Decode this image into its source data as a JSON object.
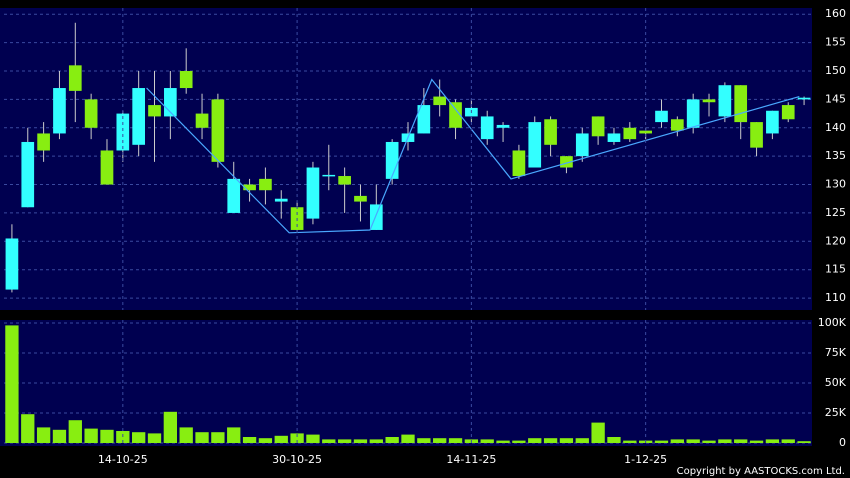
{
  "chart_data": [
    {
      "type": "candlestick",
      "open": [
        111.5,
        126,
        139,
        139,
        151,
        145,
        136,
        136,
        137,
        144,
        142,
        150,
        142.5,
        145,
        125,
        130,
        131,
        127,
        126,
        124,
        131.5,
        131.5,
        128,
        122,
        131,
        137.5,
        139,
        145.5,
        144.5,
        142,
        138,
        140,
        136,
        133,
        141.5,
        135,
        135,
        142,
        137.5,
        140,
        139.5,
        141,
        141.5,
        140,
        145,
        142,
        147.5,
        141,
        139,
        144,
        145
      ],
      "high": [
        123,
        140,
        141,
        150,
        158.5,
        146,
        138,
        143,
        150,
        150,
        150,
        154,
        146,
        146,
        134,
        131,
        133,
        129,
        127,
        134,
        137,
        133,
        130,
        130,
        138,
        141,
        147,
        148.5,
        145,
        145,
        143,
        141,
        137,
        142,
        142,
        135,
        140,
        142,
        140,
        141,
        140,
        145,
        142,
        146,
        146,
        148,
        147.5,
        141,
        143,
        144.5,
        145.5
      ],
      "low": [
        111,
        126,
        134,
        138,
        141,
        138,
        130,
        134,
        135,
        134,
        138,
        146,
        138,
        133,
        125,
        127,
        126.5,
        124,
        121.5,
        123,
        129,
        125,
        123.5,
        122,
        130,
        136,
        139,
        142,
        138,
        141,
        137,
        137.5,
        131,
        133,
        135,
        132,
        134,
        137,
        137,
        137.5,
        138,
        140,
        138.5,
        139,
        142,
        141,
        138,
        135,
        138,
        141,
        144
      ],
      "close": [
        120.5,
        137.5,
        136,
        147,
        146.5,
        140,
        130,
        142.5,
        147,
        142,
        147,
        147,
        140,
        134,
        131,
        129,
        129,
        127.5,
        122,
        133,
        131.7,
        130,
        127,
        126.5,
        137.5,
        139,
        144,
        144,
        140,
        143.5,
        142,
        140.5,
        131.5,
        141,
        137,
        133,
        139,
        138.5,
        139,
        138,
        139,
        143,
        139.5,
        145,
        144.5,
        147.5,
        141,
        136.5,
        143,
        141.5,
        145.3
      ],
      "up_color": "#33ffff",
      "down_color": "#88ee11",
      "overlay": {
        "x": [
          8.5,
          17.5,
          22.6,
          26.5,
          31.5,
          49.7
        ],
        "values": [
          147,
          121.5,
          122,
          148.5,
          131,
          145.5
        ],
        "color": "#4aa8ff"
      },
      "ylim": [
        107.9,
        161.1
      ],
      "yticks": [
        110,
        115,
        120,
        125,
        130,
        135,
        140,
        145,
        150,
        155,
        160
      ],
      "grid": true
    },
    {
      "type": "bar",
      "categories": [
        null,
        null,
        null,
        null,
        null,
        null,
        null,
        "14-10-25",
        null,
        null,
        null,
        null,
        null,
        null,
        null,
        null,
        null,
        null,
        "30-10-25",
        null,
        null,
        null,
        null,
        null,
        null,
        null,
        null,
        null,
        null,
        "14-11-25",
        null,
        null,
        null,
        null,
        null,
        null,
        null,
        null,
        null,
        null,
        "1-12-25",
        null,
        null,
        null,
        null,
        null,
        null,
        null,
        null,
        null,
        null
      ],
      "values": [
        98000,
        24000,
        13000,
        11000,
        19000,
        12000,
        11000,
        10000,
        9000,
        8000,
        26000,
        13000,
        9000,
        9000,
        13000,
        5000,
        4000,
        6000,
        8000,
        7000,
        3000,
        3000,
        3000,
        3000,
        5000,
        7000,
        4000,
        4000,
        4000,
        3000,
        3000,
        2000,
        2000,
        4000,
        4000,
        4000,
        4000,
        17000,
        5000,
        2000,
        2000,
        2000,
        3000,
        3000,
        2000,
        3000,
        3000,
        2000,
        3000,
        3000,
        1500
      ],
      "color": "#88ee11",
      "ylim": [
        -2500,
        102500
      ],
      "yticks": [
        0,
        {
          "value": 25000,
          "label": "25K"
        },
        {
          "value": 50000,
          "label": "50K"
        },
        {
          "value": 75000,
          "label": "75K"
        },
        {
          "value": 100000,
          "label": "100K"
        }
      ],
      "grid": true
    }
  ],
  "copyright": "Copyright by AASTOCKS.com Ltd."
}
